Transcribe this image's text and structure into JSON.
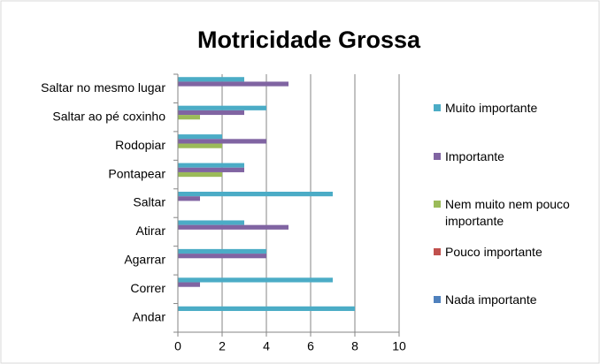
{
  "chart_data": {
    "type": "bar",
    "orientation": "horizontal",
    "title": "Motricidade Grossa",
    "categories": [
      "Saltar no mesmo lugar",
      "Saltar ao pé coxinho",
      "Rodopiar",
      "Pontapear",
      "Saltar",
      "Atirar",
      "Agarrar",
      "Correr",
      "Andar"
    ],
    "series": [
      {
        "name": "Muito importante",
        "color": "#4bacc6",
        "values": [
          3,
          4,
          2,
          3,
          7,
          3,
          4,
          7,
          8
        ]
      },
      {
        "name": "Importante",
        "color": "#8064a2",
        "values": [
          5,
          3,
          4,
          3,
          1,
          5,
          4,
          1,
          0
        ]
      },
      {
        "name": "Nem muito nem pouco importante",
        "color": "#9bbb59",
        "values": [
          0,
          1,
          2,
          2,
          0,
          0,
          0,
          0,
          0
        ]
      },
      {
        "name": "Pouco importante",
        "color": "#c0504d",
        "values": [
          0,
          0,
          0,
          0,
          0,
          0,
          0,
          0,
          0
        ]
      },
      {
        "name": "Nada importante",
        "color": "#4f81bd",
        "values": [
          0,
          0,
          0,
          0,
          0,
          0,
          0,
          0,
          0
        ]
      }
    ],
    "xlim": [
      0,
      10
    ],
    "xticks": [
      0,
      2,
      4,
      6,
      8,
      10
    ],
    "grid": true,
    "legend": "right"
  }
}
